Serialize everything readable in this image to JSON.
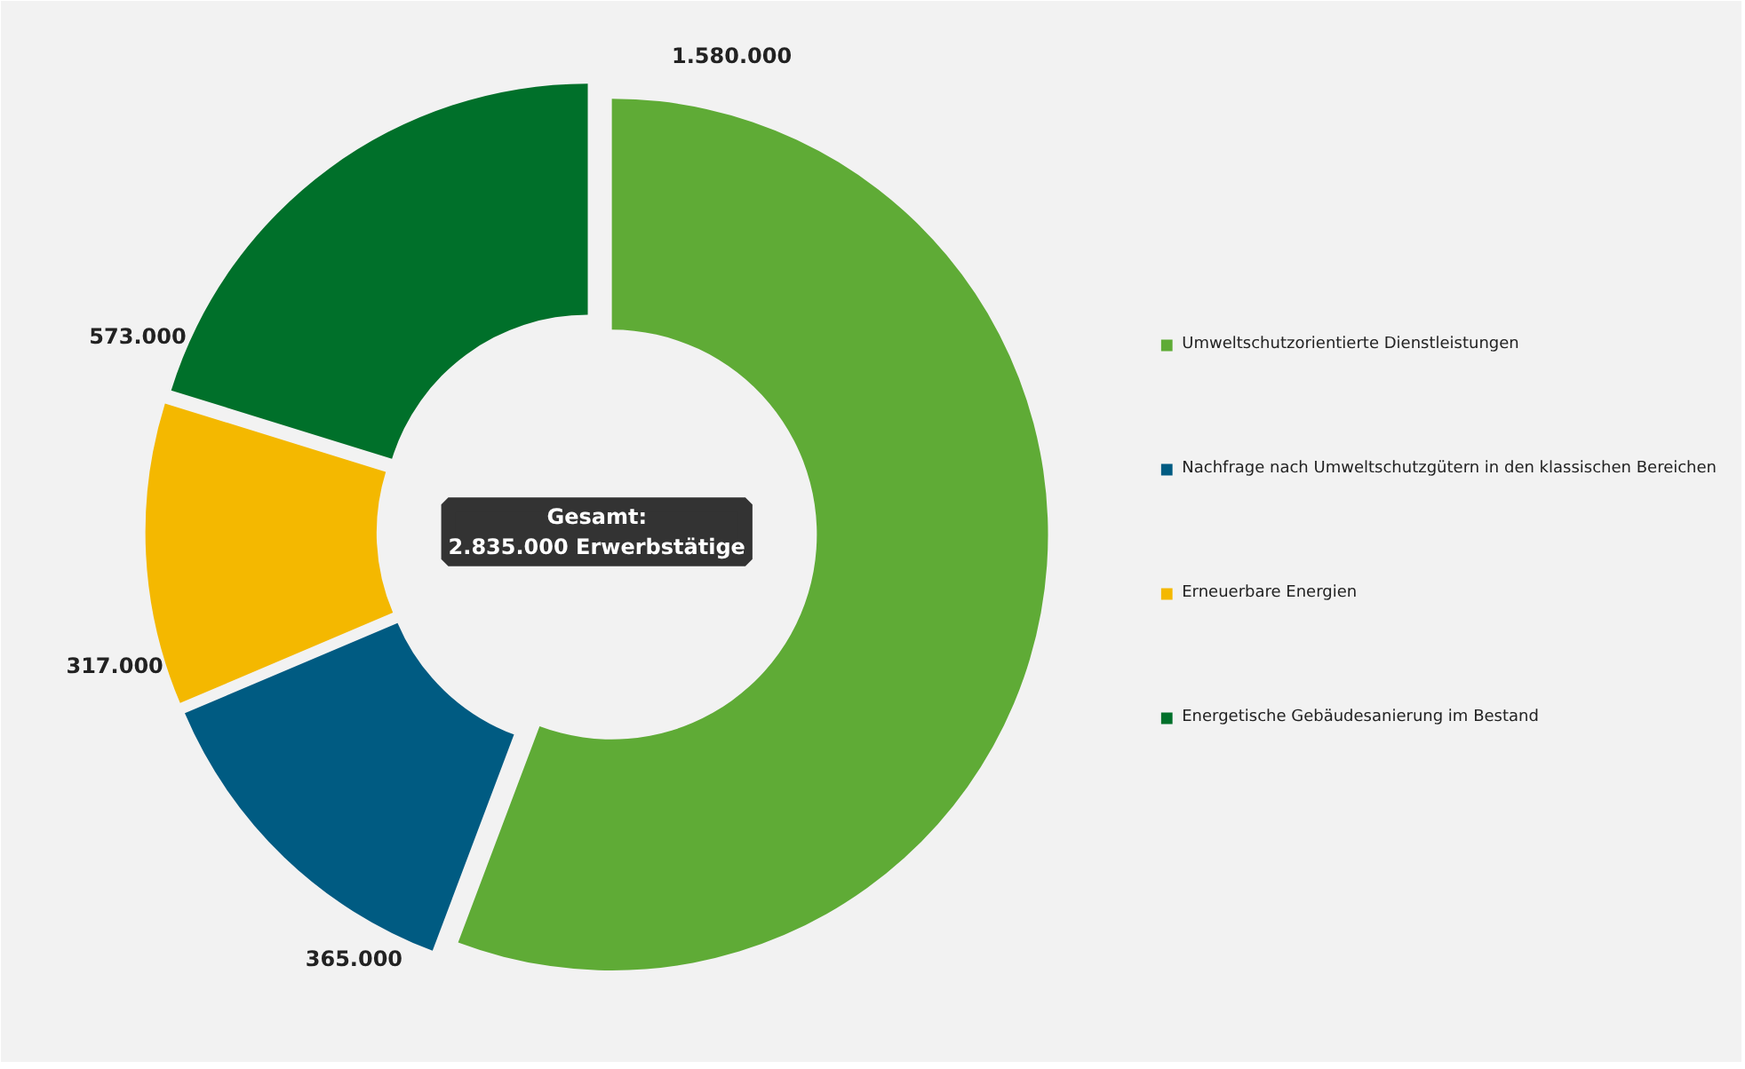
{
  "chart_data": {
    "type": "donut",
    "categories": [
      "Umweltschutzorientierte Dienstleistungen",
      "Nachfrage nach Umweltschutzgütern in den klassischen Bereichen",
      "Erneuerbare Energien",
      "Energetische Gebäudesanierung im Bestand"
    ],
    "values": [
      1580000,
      365000,
      317000,
      573000
    ],
    "colors": [
      "#5fab36",
      "#005b82",
      "#f4b800",
      "#00702a"
    ],
    "value_labels": [
      "1.580.000",
      "365.000",
      "317.000",
      "573.000"
    ],
    "annotations": [
      "Gesamt:\n2.835.000 Erwerbstätige"
    ],
    "legend": "right"
  }
}
